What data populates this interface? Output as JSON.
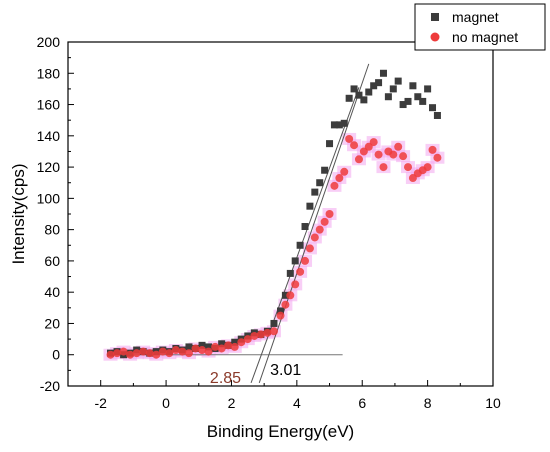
{
  "chart_data": {
    "type": "scatter",
    "xlabel": "Binding Energy(eV)",
    "ylabel": "Intensity(cps)",
    "xlim": [
      -3,
      10
    ],
    "ylim": [
      -20,
      200
    ],
    "x_ticks": [
      "-2",
      "0",
      "2",
      "4",
      "6",
      "8",
      "10"
    ],
    "y_ticks": [
      "-20",
      "0",
      "20",
      "40",
      "60",
      "80",
      "100",
      "120",
      "140",
      "160",
      "180",
      "200"
    ],
    "legend_position": "top-right",
    "series": [
      {
        "name": "magnet",
        "marker": "square",
        "color": "#3c3c3c",
        "x": [
          -1.7,
          -1.5,
          -1.3,
          -1.1,
          -0.9,
          -0.7,
          -0.5,
          -0.3,
          -0.1,
          0.1,
          0.3,
          0.5,
          0.7,
          0.9,
          1.1,
          1.3,
          1.5,
          1.7,
          1.9,
          2.1,
          2.3,
          2.5,
          2.7,
          2.9,
          3.1,
          3.3,
          3.5,
          3.65,
          3.8,
          3.95,
          4.1,
          4.25,
          4.4,
          4.55,
          4.7,
          4.85,
          5.0,
          5.15,
          5.3,
          5.45,
          5.6,
          5.75,
          5.9,
          6.05,
          6.2,
          6.35,
          6.5,
          6.65,
          6.8,
          6.95,
          7.1,
          7.25,
          7.4,
          7.55,
          7.7,
          7.85,
          8.0,
          8.15,
          8.3
        ],
        "y": [
          1,
          2,
          0,
          1,
          3,
          2,
          1,
          2,
          3,
          2,
          4,
          3,
          5,
          4,
          6,
          5,
          4,
          7,
          6,
          8,
          10,
          12,
          14,
          13,
          15,
          20,
          28,
          38,
          52,
          60,
          70,
          82,
          95,
          104,
          110,
          118,
          135,
          147,
          147,
          148,
          164,
          170,
          166,
          163,
          168,
          172,
          174,
          180,
          165,
          170,
          175,
          160,
          162,
          172,
          165,
          162,
          170,
          158,
          153
        ]
      },
      {
        "name": "no magnet",
        "marker": "circle",
        "color": "#ee3b3b",
        "x": [
          -1.7,
          -1.5,
          -1.3,
          -1.1,
          -0.9,
          -0.7,
          -0.5,
          -0.3,
          -0.1,
          0.1,
          0.3,
          0.5,
          0.7,
          0.9,
          1.1,
          1.3,
          1.5,
          1.7,
          1.9,
          2.1,
          2.3,
          2.5,
          2.7,
          2.9,
          3.1,
          3.3,
          3.5,
          3.65,
          3.8,
          3.95,
          4.1,
          4.25,
          4.4,
          4.55,
          4.7,
          4.85,
          5.0,
          5.15,
          5.3,
          5.45,
          5.6,
          5.75,
          5.9,
          6.05,
          6.2,
          6.35,
          6.5,
          6.65,
          6.8,
          6.95,
          7.1,
          7.25,
          7.4,
          7.55,
          7.7,
          7.85,
          8.0,
          8.15,
          8.3
        ],
        "y": [
          0,
          1,
          2,
          0,
          1,
          2,
          1,
          0,
          2,
          1,
          3,
          2,
          1,
          4,
          3,
          2,
          5,
          4,
          6,
          5,
          8,
          10,
          12,
          13,
          14,
          15,
          25,
          32,
          38,
          45,
          53,
          60,
          68,
          75,
          80,
          85,
          90,
          108,
          113,
          117,
          138,
          134,
          125,
          130,
          133,
          136,
          128,
          120,
          130,
          128,
          133,
          127,
          120,
          113,
          116,
          118,
          120,
          131,
          126
        ]
      }
    ],
    "fit_lines": [
      {
        "label": "2.85",
        "label_color": "#8b3a2a",
        "x": [
          2.6,
          5.9
        ],
        "y": [
          -18,
          171
        ]
      },
      {
        "label": "3.01",
        "label_color": "#000000",
        "x": [
          2.85,
          6.2
        ],
        "y": [
          -18,
          186
        ]
      }
    ],
    "baseline": {
      "x": [
        -1.8,
        5.4
      ],
      "y": [
        0,
        0
      ]
    }
  }
}
